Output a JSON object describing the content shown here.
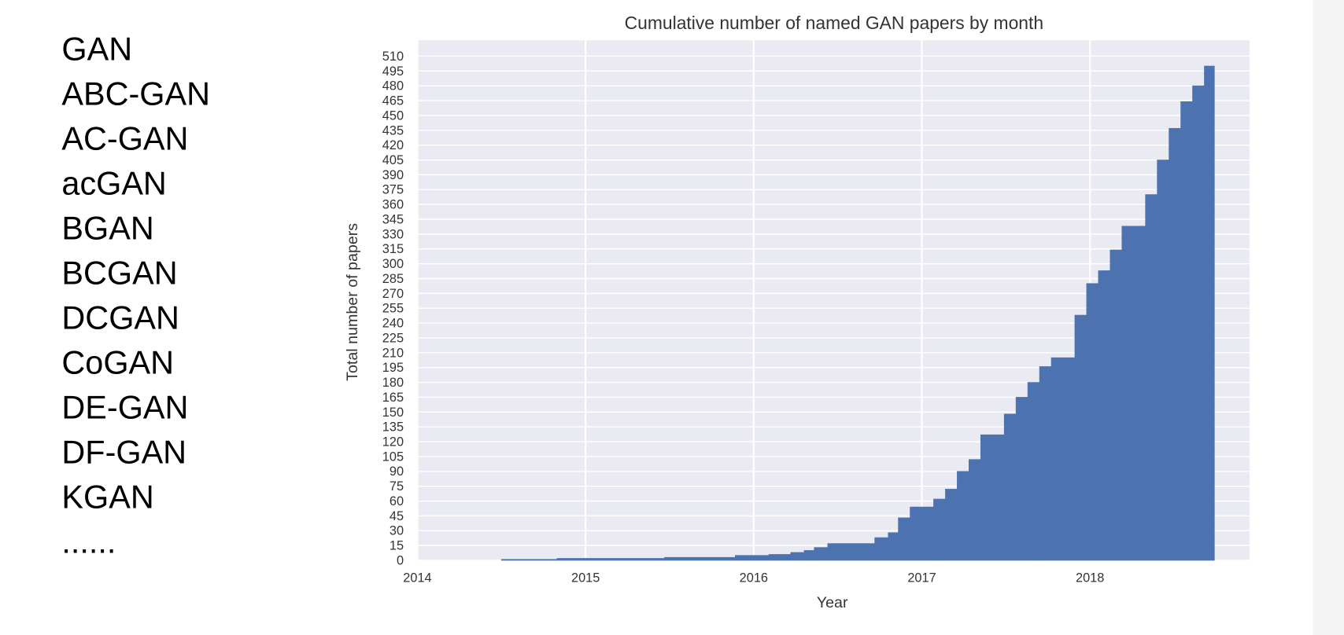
{
  "list": {
    "items": [
      "GAN",
      "ABC-GAN",
      "AC-GAN",
      "acGAN",
      "BGAN",
      "BCGAN",
      "DCGAN",
      "CoGAN",
      "DE-GAN",
      "DF-GAN",
      "KGAN",
      "......"
    ]
  },
  "chart_data": {
    "type": "histogram",
    "title": "Cumulative number of named GAN papers by month",
    "x_label": "Year",
    "y_label": "Total number of papers",
    "bins": [
      2014.5,
      2014.83,
      2015.47,
      2015.89,
      2016.09,
      2016.22,
      2016.3,
      2016.36,
      2016.44,
      2016.72,
      2016.8,
      2016.86,
      2016.93,
      2017.07,
      2017.14,
      2017.21,
      2017.28,
      2017.35,
      2017.49,
      2017.56,
      2017.63,
      2017.7,
      2017.77,
      2017.91,
      2017.98,
      2018.05,
      2018.12,
      2018.19,
      2018.33,
      2018.4,
      2018.47,
      2018.54,
      2018.61,
      2018.68,
      2018.74
    ],
    "values": [
      1,
      2,
      3,
      5,
      6,
      8,
      10,
      13,
      17,
      23,
      28,
      43,
      54,
      62,
      72,
      90,
      102,
      127,
      148,
      165,
      180,
      196,
      205,
      248,
      280,
      293,
      314,
      338,
      370,
      405,
      437,
      464,
      480,
      500
    ],
    "color": "#4c72b0",
    "xlim": [
      2014,
      2018.95
    ],
    "xticks": [
      2014,
      2015,
      2016,
      2017,
      2018
    ],
    "ylim": [
      0,
      526
    ],
    "yticks": [
      0,
      15,
      30,
      45,
      60,
      75,
      90,
      105,
      120,
      135,
      150,
      165,
      180,
      195,
      210,
      225,
      240,
      255,
      270,
      285,
      300,
      315,
      330,
      345,
      360,
      375,
      390,
      405,
      420,
      435,
      450,
      465,
      480,
      495,
      510
    ],
    "grid": true
  }
}
